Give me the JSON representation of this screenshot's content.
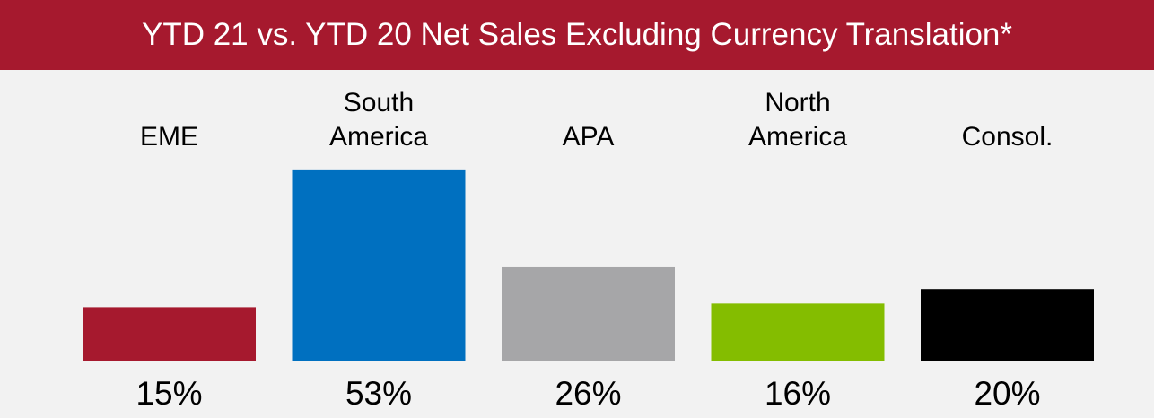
{
  "chart_data": {
    "type": "bar",
    "title": "YTD 21 vs. YTD 20 Net Sales Excluding Currency Translation*",
    "categories": [
      "EME",
      "South\nAmerica",
      "APA",
      "North\nAmerica",
      "Consol."
    ],
    "values": [
      15,
      53,
      26,
      16,
      20
    ],
    "value_labels": [
      "15%",
      "53%",
      "26%",
      "16%",
      "20%"
    ],
    "colors": [
      "#a6192e",
      "#0070c0",
      "#a6a6a8",
      "#84bd00",
      "#000000"
    ]
  }
}
